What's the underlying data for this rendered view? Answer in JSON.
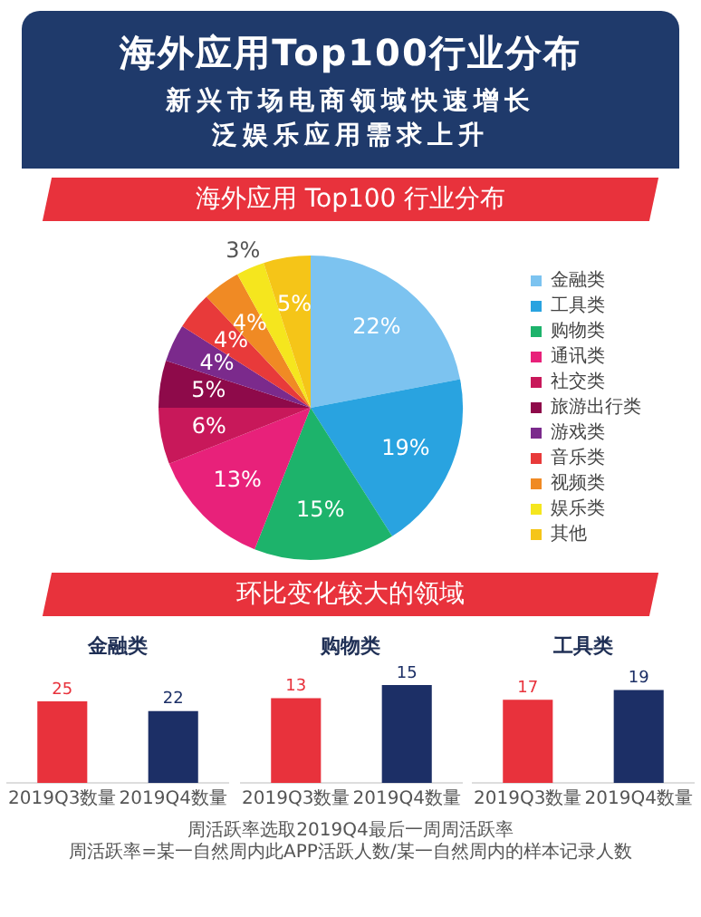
{
  "chart_data": [
    {
      "type": "other",
      "title": "海外应用Top100行业分布",
      "subtitle": "新兴市场电商领域快速增长泛娱乐应用需求上升"
    },
    {
      "type": "pie",
      "title": "海外应用 Top100 行业分布",
      "categories": [
        "金融类",
        "工具类",
        "购物类",
        "通讯类",
        "社交类",
        "旅游出行类",
        "游戏类",
        "音乐类",
        "视频类",
        "娱乐类",
        "其他"
      ],
      "values": [
        22,
        19,
        15,
        13,
        6,
        5,
        4,
        4,
        4,
        3,
        5
      ],
      "colors": [
        "#7cc3f0",
        "#29a3e0",
        "#1db36b",
        "#e8217a",
        "#c8185a",
        "#8e0a4a",
        "#7b2a8c",
        "#e83a3a",
        "#f08a24",
        "#f5e61e",
        "#f5c518"
      ],
      "value_labels": [
        "22%",
        "19%",
        "15%",
        "13%",
        "6%",
        "5%",
        "4%",
        "4%",
        "4%",
        "3%",
        "5%"
      ],
      "legend": "right"
    },
    {
      "type": "other",
      "title": "环比变化较大的领域"
    },
    {
      "type": "bar",
      "title": "金融类",
      "categories": [
        "2019Q3数量",
        "2019Q4数量"
      ],
      "values": [
        25,
        22
      ],
      "colors": [
        "#e8323c",
        "#1c2f66"
      ],
      "data_labels": true
    },
    {
      "type": "bar",
      "title": "购物类",
      "categories": [
        "2019Q3数量",
        "2019Q4数量"
      ],
      "values": [
        13,
        15
      ],
      "colors": [
        "#e8323c",
        "#1c2f66"
      ],
      "data_labels": true
    },
    {
      "type": "bar",
      "title": "工具类",
      "categories": [
        "2019Q3数量",
        "2019Q4数量"
      ],
      "values": [
        17,
        19
      ],
      "colors": [
        "#e8323c",
        "#1c2f66"
      ],
      "data_labels": true
    },
    {
      "type": "other",
      "annotations": [
        "周活跃率选取2019Q4最后一周周活跃率",
        "周活跃率=某一自然周内此APP活跃人数/某一自然周内的样本记录人数"
      ]
    }
  ]
}
